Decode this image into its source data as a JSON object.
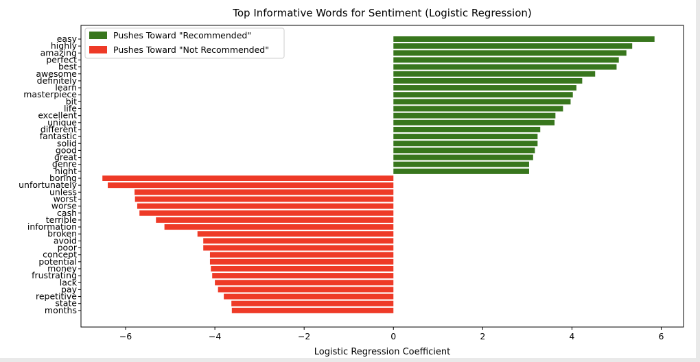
{
  "chart_data": {
    "type": "bar",
    "orientation": "horizontal",
    "title": "Top Informative Words for Sentiment (Logistic Regression)",
    "xlabel": "Logistic Regression Coefficient",
    "ylabel": "",
    "xlim": [
      -7.0,
      6.5
    ],
    "xticks": [
      -6,
      -4,
      -2,
      0,
      2,
      4,
      6
    ],
    "xtick_labels": [
      "−6",
      "−4",
      "−2",
      "0",
      "2",
      "4",
      "6"
    ],
    "grid": false,
    "legend_position": "upper-left",
    "colors": {
      "positive": "#38761d",
      "negative": "#ee3a27"
    },
    "series": [
      {
        "name": "Pushes Toward \"Recommended\"",
        "color": "#38761d"
      },
      {
        "name": "Pushes Toward \"Not Recommended\"",
        "color": "#ee3a27"
      }
    ],
    "categories": [
      "easy",
      "highly",
      "amazing",
      "perfect",
      "best",
      "awesome",
      "definitely",
      "learn",
      "masterpiece",
      "bit",
      "life",
      "excellent",
      "unique",
      "different",
      "fantastic",
      "solid",
      "good",
      "great",
      "genre",
      "hight",
      "boring",
      "unfortunately",
      "unless",
      "worst",
      "worse",
      "cash",
      "terrible",
      "information",
      "broken",
      "avoid",
      "poor",
      "concept",
      "potential",
      "money",
      "frustrating",
      "lack",
      "pay",
      "repetitive",
      "state",
      "months"
    ],
    "values": [
      5.85,
      5.35,
      5.22,
      5.05,
      5.0,
      4.52,
      4.23,
      4.1,
      4.02,
      3.97,
      3.8,
      3.63,
      3.61,
      3.29,
      3.23,
      3.23,
      3.17,
      3.13,
      3.04,
      3.04,
      -6.52,
      -6.4,
      -5.8,
      -5.79,
      -5.74,
      -5.69,
      -5.32,
      -5.13,
      -4.39,
      -4.26,
      -4.26,
      -4.11,
      -4.11,
      -4.09,
      -4.06,
      -4.0,
      -3.93,
      -3.8,
      -3.63,
      -3.62
    ]
  }
}
